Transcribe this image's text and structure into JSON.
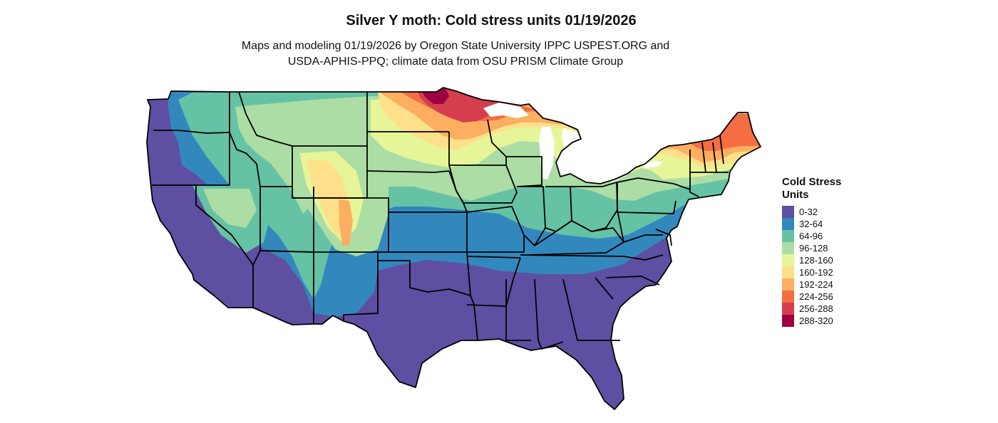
{
  "title": "Silver Y moth: Cold stress units 01/19/2026",
  "subtitle_line1": "Maps and modeling 01/19/2026 by Oregon State University IPPC USPEST.ORG and",
  "subtitle_line2": "USDA-APHIS-PPQ; climate data from OSU PRISM Climate Group",
  "legend": {
    "title_line1": "Cold Stress",
    "title_line2": "Units",
    "items": [
      {
        "label": "0-32",
        "color": "#5E4FA2"
      },
      {
        "label": "32-64",
        "color": "#3288BD"
      },
      {
        "label": "64-96",
        "color": "#66C2A5"
      },
      {
        "label": "96-128",
        "color": "#ABDDA4"
      },
      {
        "label": "128-160",
        "color": "#E6F598"
      },
      {
        "label": "160-192",
        "color": "#FEE08B"
      },
      {
        "label": "192-224",
        "color": "#FDAE61"
      },
      {
        "label": "224-256",
        "color": "#F46D43"
      },
      {
        "label": "256-288",
        "color": "#D53E4F"
      },
      {
        "label": "288-320",
        "color": "#9E0142"
      }
    ]
  },
  "colors": {
    "background": "#FFFFFF",
    "border": "#000000",
    "water": "#FFFFFF"
  }
}
